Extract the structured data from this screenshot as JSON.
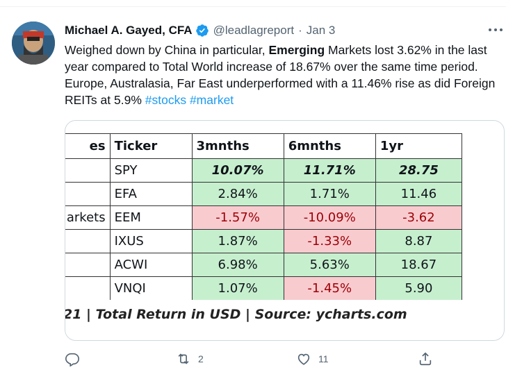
{
  "tweet": {
    "author": "Michael A. Gayed, CFA",
    "handle": "@leadlagreport",
    "separator": "·",
    "date": "Jan 3",
    "text_parts": {
      "p1": "Weighed down by China in particular, ",
      "bold": "Emerging",
      "p2": " Markets lost 3.62% in the last year compared to Total World increase of 18.67% over the same time period. Europe, Australasia, Far East underperformed with a 11.46% rise as did Foreign REITs at 5.9% ",
      "tag1": "#stocks",
      "space": " ",
      "tag2": "#market"
    }
  },
  "image_table": {
    "headers": [
      "es",
      "Ticker",
      "3mnths",
      "6mnths",
      "1yr"
    ],
    "rows": [
      {
        "first": "",
        "ticker": "SPY",
        "m3": "10.07%",
        "m6": "11.71%",
        "y1": "28.75"
      },
      {
        "first": "",
        "ticker": "EFA",
        "m3": "2.84%",
        "m6": "1.71%",
        "y1": "11.46"
      },
      {
        "first": "arkets",
        "ticker": "EEM",
        "m3": "-1.57%",
        "m6": "-10.09%",
        "y1": "-3.62"
      },
      {
        "first": ".",
        "ticker": "IXUS",
        "m3": "1.87%",
        "m6": "-1.33%",
        "y1": "8.87"
      },
      {
        "first": "",
        "ticker": "ACWI",
        "m3": "6.98%",
        "m6": "5.63%",
        "y1": "18.67"
      },
      {
        "first": "",
        "ticker": "VNQI",
        "m3": "1.07%",
        "m6": "-1.45%",
        "y1": "5.90"
      }
    ],
    "source": "21 | Total Return in USD | Source: ycharts.com"
  },
  "actions": {
    "reply_count": "",
    "retweet_count": "2",
    "like_count": "11"
  },
  "colors": {
    "accent": "#1d9bf0",
    "positive_cell": "#c6efce",
    "negative_cell": "#f8cbcf",
    "muted_text": "#536471"
  },
  "icons": {
    "verified": "verified-badge-icon",
    "more": "more-icon",
    "reply": "reply-icon",
    "retweet": "retweet-icon",
    "like": "heart-icon",
    "share": "share-icon"
  }
}
